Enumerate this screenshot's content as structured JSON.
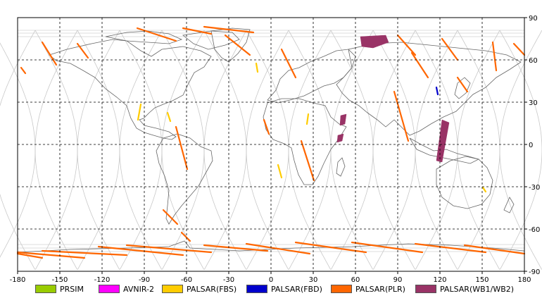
{
  "map": {
    "lon_ticks": [
      "-180",
      "-150",
      "-120",
      "-90",
      "-60",
      "-30",
      "0",
      "30",
      "60",
      "90",
      "120",
      "150",
      "180"
    ],
    "lat_ticks": [
      "90",
      "60",
      "30",
      "0",
      "-30",
      "-60",
      "-90"
    ],
    "lon_range": [
      -180,
      180
    ],
    "lat_range": [
      -90,
      90
    ],
    "grid": true
  },
  "legend": [
    {
      "label": "PRSIM",
      "color": "#99cc00"
    },
    {
      "label": "AVNIR-2",
      "color": "#ff00ff"
    },
    {
      "label": "PALSAR(FBS)",
      "color": "#ffcc00"
    },
    {
      "label": "PALSAR(FBD)",
      "color": "#0000cc"
    },
    {
      "label": "PALSAR(PLR)",
      "color": "#ff6600"
    },
    {
      "label": "PALSAR(WB1/WB2)",
      "color": "#993366"
    }
  ]
}
